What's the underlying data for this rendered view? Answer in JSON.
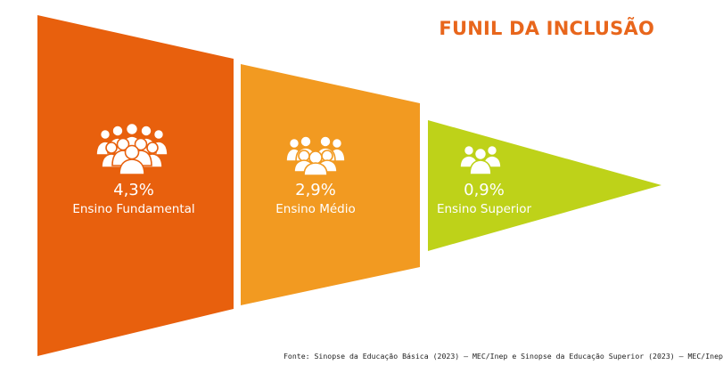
{
  "title": "FUNIL DA INCLUSÃO",
  "colors": {
    "title": "#e8661c",
    "fundamental": "#e8600d",
    "medio": "#f29a21",
    "superior": "#bed219"
  },
  "stages": [
    {
      "value": "4,3%",
      "label": "Ensino Fundamental",
      "icon": "people-group-icon"
    },
    {
      "value": "2,9%",
      "label": "Ensino Médio",
      "icon": "people-group-icon"
    },
    {
      "value": "0,9%",
      "label": "Ensino Superior",
      "icon": "people-group-icon"
    }
  ],
  "source": "Fonte: Sinopse da Educação Básica (2023) – MEC/Inep e Sinopse da Educação Superior (2023) – MEC/Inep"
}
